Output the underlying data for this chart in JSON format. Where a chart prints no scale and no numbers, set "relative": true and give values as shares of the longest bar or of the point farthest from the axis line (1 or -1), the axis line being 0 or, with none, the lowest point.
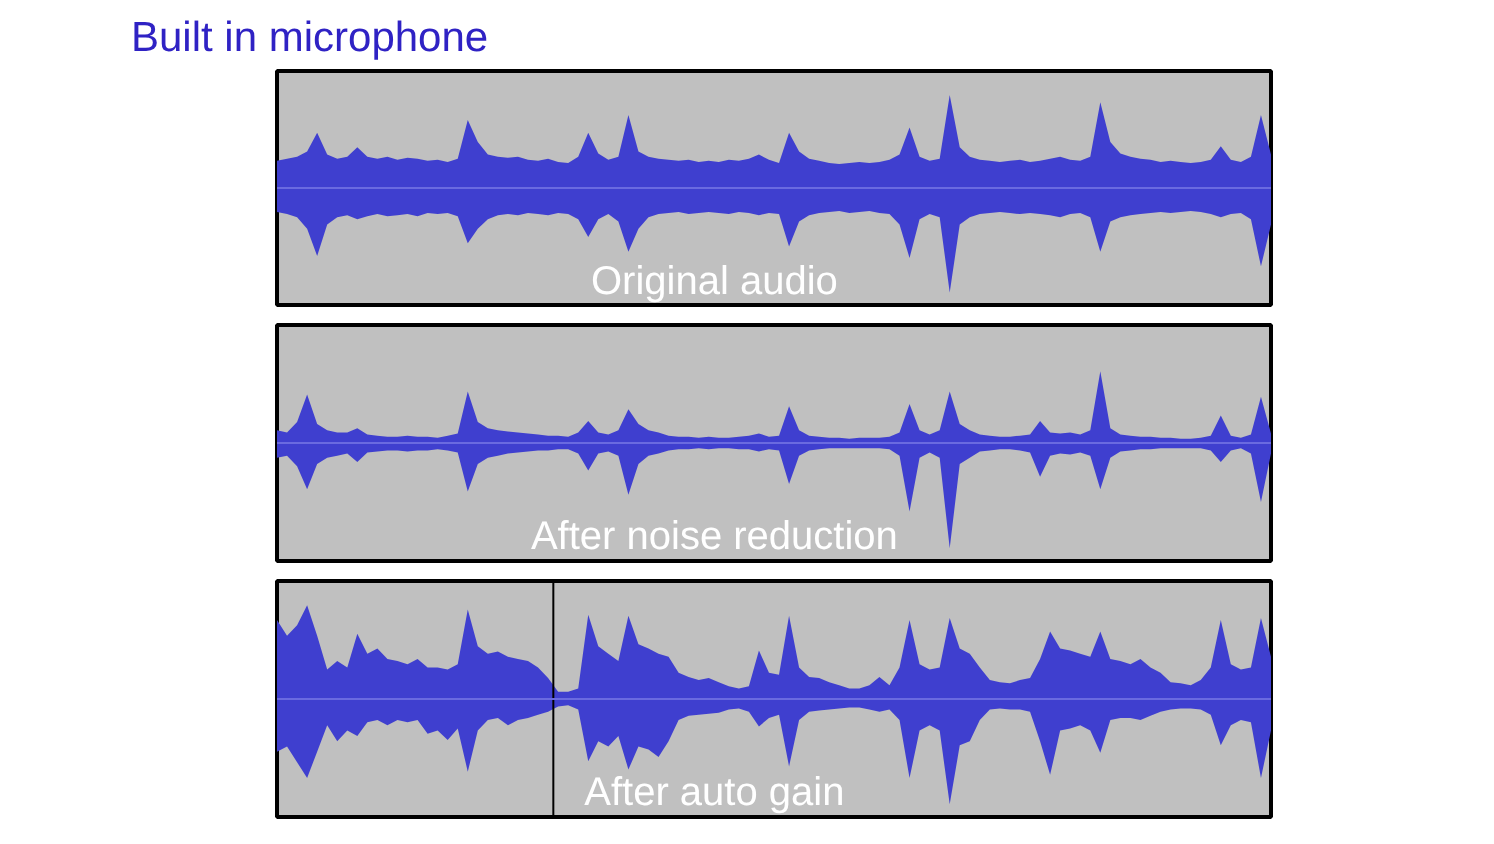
{
  "chart_data": [
    {
      "type": "area",
      "title": "Built in microphone",
      "relative": true,
      "tick_labels": false,
      "annotations": [
        "Original audio"
      ],
      "ref_lines": [
        {
          "axis": "y",
          "value": 0,
          "color": "#6a6ae0"
        }
      ],
      "categories": [
        null,
        null,
        null,
        null,
        null,
        null,
        null,
        null,
        null,
        null,
        null,
        null,
        null,
        null,
        null,
        null,
        null,
        null,
        null,
        null,
        null,
        null,
        null,
        null,
        null,
        null,
        null,
        null,
        null,
        null,
        null,
        null,
        null,
        null,
        null,
        null,
        null,
        null,
        null,
        null,
        null,
        null,
        null,
        null,
        null,
        null,
        null,
        null,
        null,
        null,
        null,
        null,
        null,
        null,
        null,
        null,
        null,
        null,
        null,
        null,
        null,
        null,
        null,
        null,
        null,
        null,
        null,
        null,
        null,
        null,
        null,
        null,
        null,
        null,
        null,
        null,
        null,
        null,
        null,
        null,
        null,
        null,
        null,
        null,
        null,
        null,
        null,
        null,
        null,
        null,
        null,
        null,
        null,
        null,
        null,
        null,
        null,
        null,
        null,
        null
      ],
      "series": [
        {
          "color": "#3f3fcf",
          "values": [
            0.26,
            0.28,
            0.3,
            0.35,
            0.53,
            0.32,
            0.28,
            0.3,
            0.39,
            0.3,
            0.28,
            0.3,
            0.27,
            0.29,
            0.28,
            0.26,
            0.27,
            0.25,
            0.28,
            0.65,
            0.44,
            0.32,
            0.3,
            0.29,
            0.3,
            0.27,
            0.26,
            0.28,
            0.25,
            0.24,
            0.3,
            0.53,
            0.33,
            0.27,
            0.3,
            0.7,
            0.35,
            0.3,
            0.28,
            0.27,
            0.26,
            0.27,
            0.25,
            0.26,
            0.25,
            0.27,
            0.26,
            0.28,
            0.32,
            0.27,
            0.24,
            0.53,
            0.35,
            0.28,
            0.26,
            0.24,
            0.23,
            0.24,
            0.25,
            0.24,
            0.25,
            0.27,
            0.32,
            0.58,
            0.3,
            0.26,
            0.28,
            0.89,
            0.39,
            0.3,
            0.27,
            0.26,
            0.25,
            0.26,
            0.27,
            0.25,
            0.26,
            0.28,
            0.3,
            0.27,
            0.26,
            0.3,
            0.82,
            0.44,
            0.33,
            0.3,
            0.28,
            0.27,
            0.25,
            0.26,
            0.25,
            0.24,
            0.25,
            0.27,
            0.4,
            0.27,
            0.25,
            0.3,
            0.7,
            0.32
          ]
        },
        {
          "color": "#3f3fcf",
          "values": [
            -0.23,
            -0.25,
            -0.28,
            -0.39,
            -0.65,
            -0.35,
            -0.28,
            -0.26,
            -0.3,
            -0.27,
            -0.25,
            -0.27,
            -0.26,
            -0.25,
            -0.27,
            -0.24,
            -0.25,
            -0.24,
            -0.27,
            -0.53,
            -0.39,
            -0.3,
            -0.26,
            -0.25,
            -0.26,
            -0.24,
            -0.25,
            -0.26,
            -0.24,
            -0.25,
            -0.3,
            -0.47,
            -0.3,
            -0.25,
            -0.32,
            -0.61,
            -0.39,
            -0.28,
            -0.25,
            -0.24,
            -0.23,
            -0.25,
            -0.24,
            -0.23,
            -0.24,
            -0.25,
            -0.23,
            -0.24,
            -0.26,
            -0.24,
            -0.25,
            -0.56,
            -0.32,
            -0.26,
            -0.24,
            -0.23,
            -0.22,
            -0.24,
            -0.23,
            -0.22,
            -0.24,
            -0.25,
            -0.35,
            -0.67,
            -0.3,
            -0.25,
            -0.28,
            -1,
            -0.35,
            -0.28,
            -0.25,
            -0.24,
            -0.23,
            -0.24,
            -0.25,
            -0.24,
            -0.25,
            -0.26,
            -0.28,
            -0.25,
            -0.24,
            -0.28,
            -0.61,
            -0.32,
            -0.28,
            -0.26,
            -0.25,
            -0.24,
            -0.23,
            -0.24,
            -0.23,
            -0.22,
            -0.23,
            -0.25,
            -0.28,
            -0.25,
            -0.24,
            -0.3,
            -0.75,
            -0.35
          ]
        }
      ]
    },
    {
      "type": "area",
      "relative": true,
      "tick_labels": false,
      "annotations": [
        "After noise reduction"
      ],
      "ref_lines": [
        {
          "axis": "y",
          "value": 0,
          "color": "#6a6ae0"
        }
      ],
      "categories": [
        null,
        null,
        null,
        null,
        null,
        null,
        null,
        null,
        null,
        null,
        null,
        null,
        null,
        null,
        null,
        null,
        null,
        null,
        null,
        null,
        null,
        null,
        null,
        null,
        null,
        null,
        null,
        null,
        null,
        null,
        null,
        null,
        null,
        null,
        null,
        null,
        null,
        null,
        null,
        null,
        null,
        null,
        null,
        null,
        null,
        null,
        null,
        null,
        null,
        null,
        null,
        null,
        null,
        null,
        null,
        null,
        null,
        null,
        null,
        null,
        null,
        null,
        null,
        null,
        null,
        null,
        null,
        null,
        null,
        null,
        null,
        null,
        null,
        null,
        null,
        null,
        null,
        null,
        null,
        null,
        null,
        null,
        null,
        null,
        null,
        null,
        null,
        null,
        null,
        null,
        null,
        null,
        null,
        null,
        null,
        null,
        null,
        null,
        null,
        null
      ],
      "series": [
        {
          "color": "#3f3fcf",
          "values": [
            0.12,
            0.1,
            0.2,
            0.46,
            0.18,
            0.12,
            0.1,
            0.1,
            0.14,
            0.08,
            0.07,
            0.06,
            0.06,
            0.07,
            0.06,
            0.06,
            0.05,
            0.07,
            0.09,
            0.49,
            0.2,
            0.14,
            0.12,
            0.11,
            0.1,
            0.09,
            0.08,
            0.07,
            0.07,
            0.06,
            0.1,
            0.21,
            0.1,
            0.08,
            0.12,
            0.32,
            0.18,
            0.12,
            0.1,
            0.07,
            0.06,
            0.06,
            0.05,
            0.06,
            0.05,
            0.05,
            0.06,
            0.07,
            0.09,
            0.06,
            0.07,
            0.35,
            0.12,
            0.07,
            0.06,
            0.05,
            0.05,
            0.04,
            0.05,
            0.05,
            0.05,
            0.06,
            0.1,
            0.37,
            0.12,
            0.08,
            0.12,
            0.49,
            0.18,
            0.12,
            0.08,
            0.07,
            0.06,
            0.06,
            0.07,
            0.08,
            0.21,
            0.1,
            0.09,
            0.1,
            0.08,
            0.12,
            0.68,
            0.14,
            0.08,
            0.07,
            0.06,
            0.06,
            0.05,
            0.05,
            0.04,
            0.04,
            0.05,
            0.07,
            0.26,
            0.07,
            0.05,
            0.08,
            0.44,
            0.09
          ]
        },
        {
          "color": "#3f3fcf",
          "values": [
            -0.14,
            -0.12,
            -0.22,
            -0.44,
            -0.2,
            -0.14,
            -0.12,
            -0.1,
            -0.18,
            -0.09,
            -0.08,
            -0.07,
            -0.07,
            -0.08,
            -0.07,
            -0.07,
            -0.06,
            -0.07,
            -0.09,
            -0.46,
            -0.2,
            -0.14,
            -0.12,
            -0.1,
            -0.09,
            -0.08,
            -0.07,
            -0.07,
            -0.06,
            -0.06,
            -0.1,
            -0.26,
            -0.1,
            -0.08,
            -0.12,
            -0.49,
            -0.2,
            -0.12,
            -0.1,
            -0.07,
            -0.06,
            -0.06,
            -0.05,
            -0.06,
            -0.05,
            -0.05,
            -0.06,
            -0.06,
            -0.08,
            -0.06,
            -0.07,
            -0.39,
            -0.12,
            -0.07,
            -0.06,
            -0.05,
            -0.05,
            -0.05,
            -0.05,
            -0.05,
            -0.05,
            -0.06,
            -0.12,
            -0.65,
            -0.14,
            -0.09,
            -0.14,
            -1,
            -0.2,
            -0.14,
            -0.08,
            -0.07,
            -0.06,
            -0.06,
            -0.07,
            -0.09,
            -0.32,
            -0.12,
            -0.1,
            -0.11,
            -0.09,
            -0.12,
            -0.44,
            -0.14,
            -0.08,
            -0.07,
            -0.06,
            -0.06,
            -0.05,
            -0.05,
            -0.05,
            -0.05,
            -0.05,
            -0.07,
            -0.18,
            -0.07,
            -0.05,
            -0.1,
            -0.56,
            -0.1
          ]
        }
      ]
    },
    {
      "type": "area",
      "relative": true,
      "tick_labels": false,
      "annotations": [
        "After auto gain"
      ],
      "ref_lines": [
        {
          "axis": "y",
          "value": 0,
          "color": "#6a6ae0"
        }
      ],
      "categories": [
        null,
        null,
        null,
        null,
        null,
        null,
        null,
        null,
        null,
        null,
        null,
        null,
        null,
        null,
        null,
        null,
        null,
        null,
        null,
        null,
        null,
        null,
        null,
        null,
        null,
        null,
        null,
        null,
        null,
        null,
        null,
        null,
        null,
        null,
        null,
        null,
        null,
        null,
        null,
        null,
        null,
        null,
        null,
        null,
        null,
        null,
        null,
        null,
        null,
        null,
        null,
        null,
        null,
        null,
        null,
        null,
        null,
        null,
        null,
        null,
        null,
        null,
        null,
        null,
        null,
        null,
        null,
        null,
        null,
        null,
        null,
        null,
        null,
        null,
        null,
        null,
        null,
        null,
        null,
        null,
        null,
        null,
        null,
        null,
        null,
        null,
        null,
        null,
        null,
        null,
        null,
        null,
        null,
        null,
        null,
        null,
        null,
        null,
        null,
        null
      ],
      "series": [
        {
          "color": "#3f3fcf",
          "values": [
            0.75,
            0.6,
            0.7,
            0.89,
            0.6,
            0.28,
            0.36,
            0.3,
            0.62,
            0.43,
            0.48,
            0.38,
            0.36,
            0.33,
            0.38,
            0.3,
            0.3,
            0.28,
            0.33,
            0.85,
            0.5,
            0.43,
            0.45,
            0.4,
            0.38,
            0.36,
            0.3,
            0.2,
            0.07,
            0.07,
            0.1,
            0.8,
            0.5,
            0.43,
            0.36,
            0.79,
            0.52,
            0.48,
            0.43,
            0.4,
            0.25,
            0.21,
            0.18,
            0.2,
            0.16,
            0.12,
            0.1,
            0.12,
            0.46,
            0.25,
            0.23,
            0.79,
            0.3,
            0.21,
            0.2,
            0.16,
            0.13,
            0.1,
            0.1,
            0.13,
            0.21,
            0.13,
            0.3,
            0.75,
            0.33,
            0.28,
            0.3,
            0.77,
            0.48,
            0.43,
            0.3,
            0.18,
            0.16,
            0.15,
            0.18,
            0.2,
            0.38,
            0.64,
            0.48,
            0.46,
            0.43,
            0.4,
            0.64,
            0.38,
            0.36,
            0.33,
            0.38,
            0.3,
            0.25,
            0.16,
            0.15,
            0.13,
            0.18,
            0.3,
            0.75,
            0.33,
            0.28,
            0.3,
            0.77,
            0.4
          ]
        },
        {
          "color": "#3f3fcf",
          "values": [
            -0.5,
            -0.45,
            -0.6,
            -0.75,
            -0.5,
            -0.25,
            -0.4,
            -0.3,
            -0.35,
            -0.22,
            -0.2,
            -0.25,
            -0.2,
            -0.22,
            -0.2,
            -0.33,
            -0.3,
            -0.39,
            -0.28,
            -0.69,
            -0.3,
            -0.2,
            -0.18,
            -0.25,
            -0.2,
            -0.18,
            -0.15,
            -0.12,
            -0.07,
            -0.06,
            -0.1,
            -0.59,
            -0.4,
            -0.45,
            -0.35,
            -0.67,
            -0.45,
            -0.48,
            -0.55,
            -0.4,
            -0.2,
            -0.16,
            -0.15,
            -0.14,
            -0.13,
            -0.1,
            -0.09,
            -0.12,
            -0.26,
            -0.18,
            -0.15,
            -0.64,
            -0.2,
            -0.12,
            -0.11,
            -0.1,
            -0.09,
            -0.08,
            -0.08,
            -0.1,
            -0.12,
            -0.1,
            -0.2,
            -0.75,
            -0.3,
            -0.25,
            -0.3,
            -1,
            -0.44,
            -0.4,
            -0.2,
            -0.1,
            -0.09,
            -0.1,
            -0.1,
            -0.12,
            -0.4,
            -0.72,
            -0.3,
            -0.28,
            -0.25,
            -0.3,
            -0.51,
            -0.2,
            -0.18,
            -0.18,
            -0.2,
            -0.16,
            -0.12,
            -0.1,
            -0.09,
            -0.09,
            -0.1,
            -0.15,
            -0.44,
            -0.25,
            -0.2,
            -0.22,
            -0.75,
            -0.3
          ]
        }
      ]
    }
  ]
}
